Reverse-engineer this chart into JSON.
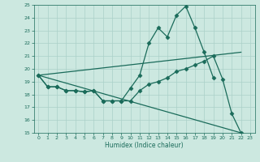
{
  "xlabel": "Humidex (Indice chaleur)",
  "background_color": "#cce8e0",
  "grid_color": "#aad0c8",
  "line_color": "#1a6b5a",
  "xlim": [
    -0.5,
    23.5
  ],
  "ylim": [
    15,
    25
  ],
  "yticks": [
    15,
    16,
    17,
    18,
    19,
    20,
    21,
    22,
    23,
    24,
    25
  ],
  "xticks": [
    0,
    1,
    2,
    3,
    4,
    5,
    6,
    7,
    8,
    9,
    10,
    11,
    12,
    13,
    14,
    15,
    16,
    17,
    18,
    19,
    20,
    21,
    22,
    23
  ],
  "series": [
    {
      "x": [
        0,
        1,
        2,
        3,
        4,
        5,
        6,
        7,
        8,
        9,
        10,
        11,
        12,
        13,
        14,
        15,
        16,
        17,
        18,
        19
      ],
      "y": [
        19.5,
        18.6,
        18.6,
        18.3,
        18.3,
        18.2,
        18.3,
        17.5,
        17.5,
        17.5,
        18.5,
        19.5,
        22.0,
        23.2,
        22.5,
        24.2,
        24.9,
        23.2,
        21.3,
        19.3
      ],
      "marker": "D",
      "markersize": 2.5,
      "linewidth": 0.9
    },
    {
      "x": [
        0,
        1,
        2,
        3,
        4,
        5,
        6,
        7,
        8,
        9,
        10,
        11,
        12,
        13,
        14,
        15,
        16,
        17,
        18,
        19,
        20,
        21,
        22
      ],
      "y": [
        19.5,
        18.6,
        18.6,
        18.3,
        18.3,
        18.2,
        18.3,
        17.5,
        17.5,
        17.5,
        17.5,
        18.3,
        18.8,
        19.0,
        19.3,
        19.8,
        20.0,
        20.3,
        20.6,
        21.0,
        19.2,
        16.5,
        15.0
      ],
      "marker": "D",
      "markersize": 2.5,
      "linewidth": 0.9
    },
    {
      "x": [
        0,
        22
      ],
      "y": [
        19.5,
        21.3
      ],
      "marker": null,
      "markersize": 0,
      "linewidth": 0.9
    },
    {
      "x": [
        0,
        22
      ],
      "y": [
        19.5,
        15.0
      ],
      "marker": null,
      "markersize": 0,
      "linewidth": 0.9
    }
  ]
}
